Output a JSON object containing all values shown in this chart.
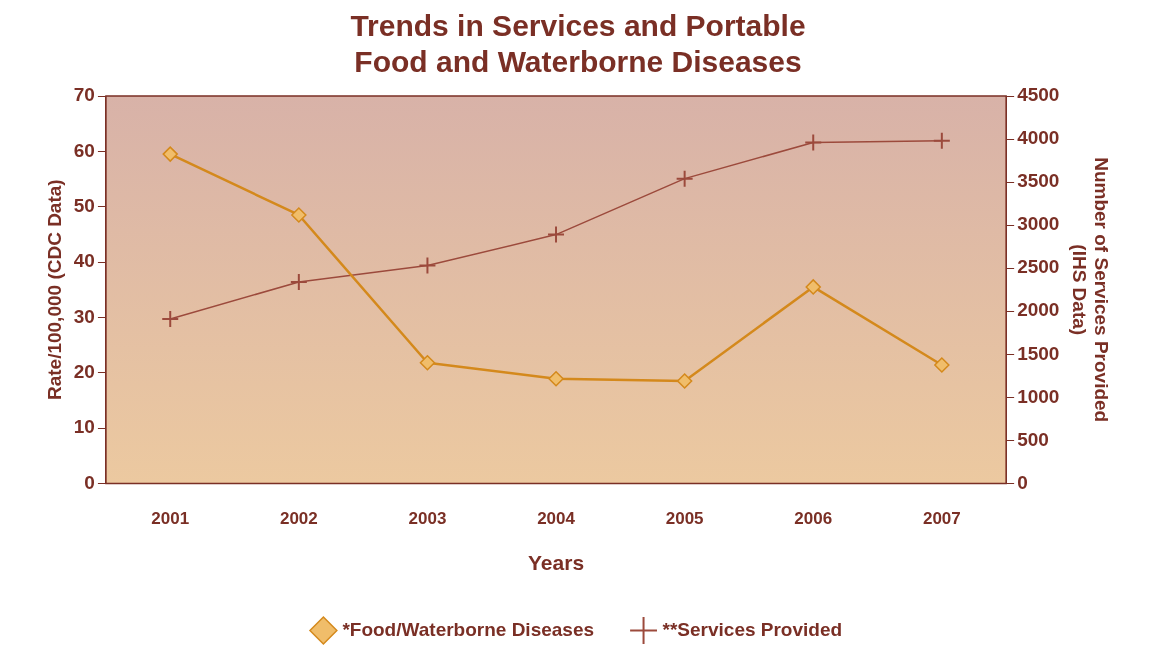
{
  "chart_data": {
    "type": "line",
    "title": "Trends in Services and Portable\nFood and Waterborne Diseases",
    "xlabel": "Years",
    "ylabel": "Rate/100,000 (CDC Data)",
    "y2label": "Number of Services Provided\n(IHS Data)",
    "categories": [
      "2001",
      "2002",
      "2003",
      "2004",
      "2005",
      "2006",
      "2007"
    ],
    "series": [
      {
        "name": "*Food/Waterborne Diseases",
        "color": "#d4891c",
        "marker": "diamond",
        "values": [
          59.5,
          48.5,
          21.8,
          18.9,
          18.5,
          35.5,
          21.4
        ]
      },
      {
        "name": "**Services Provided",
        "color": "#9c4a3c",
        "marker": "cross",
        "axis": "y2",
        "values": [
          1910,
          2340,
          2530,
          2890,
          3540,
          3960,
          3980
        ]
      }
    ],
    "ylim": [
      0,
      70
    ],
    "yticks": [
      0,
      10,
      20,
      30,
      40,
      50,
      60,
      70
    ],
    "y2lim": [
      0,
      4500
    ],
    "y2ticks": [
      0,
      500,
      1000,
      1500,
      2000,
      2500,
      3000,
      3500,
      4000,
      4500
    ],
    "grid": false,
    "legend": "bottom",
    "line_style": "solid"
  }
}
